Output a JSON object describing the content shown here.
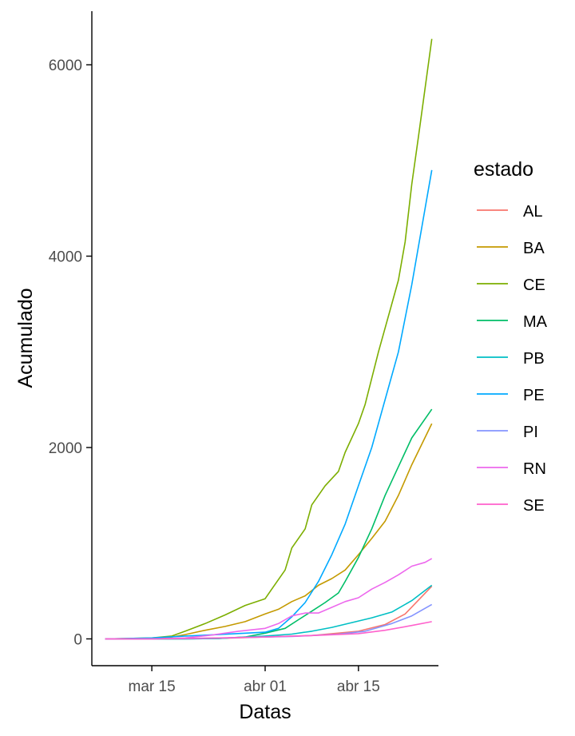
{
  "chart_data": {
    "type": "line",
    "xlabel": "Datas",
    "ylabel": "Acumulado",
    "x_ticks": [
      "mar 15",
      "abr 01",
      "abr 15"
    ],
    "y_ticks": [
      0,
      2000,
      4000,
      6000
    ],
    "xlim": [
      "2020-03-06",
      "2020-04-27"
    ],
    "ylim": [
      -280,
      6560
    ],
    "grid": false,
    "legend": {
      "title": "estado",
      "placement": "right"
    },
    "series": [
      {
        "name": "AL",
        "color": "#F8766D",
        "points": [
          [
            "2020-03-08",
            0
          ],
          [
            "2020-03-15",
            0
          ],
          [
            "2020-03-25",
            5
          ],
          [
            "2020-04-01",
            20
          ],
          [
            "2020-04-08",
            35
          ],
          [
            "2020-04-15",
            80
          ],
          [
            "2020-04-19",
            150
          ],
          [
            "2020-04-22",
            260
          ],
          [
            "2020-04-26",
            550
          ]
        ]
      },
      {
        "name": "BA",
        "color": "#C49A00",
        "points": [
          [
            "2020-03-08",
            0
          ],
          [
            "2020-03-13",
            0
          ],
          [
            "2020-03-15",
            5
          ],
          [
            "2020-03-18",
            20
          ],
          [
            "2020-03-20",
            45
          ],
          [
            "2020-03-23",
            90
          ],
          [
            "2020-03-26",
            130
          ],
          [
            "2020-03-29",
            180
          ],
          [
            "2020-04-01",
            260
          ],
          [
            "2020-04-03",
            310
          ],
          [
            "2020-04-05",
            390
          ],
          [
            "2020-04-07",
            450
          ],
          [
            "2020-04-09",
            560
          ],
          [
            "2020-04-11",
            630
          ],
          [
            "2020-04-13",
            720
          ],
          [
            "2020-04-15",
            880
          ],
          [
            "2020-04-17",
            1050
          ],
          [
            "2020-04-19",
            1230
          ],
          [
            "2020-04-21",
            1500
          ],
          [
            "2020-04-23",
            1820
          ],
          [
            "2020-04-26",
            2250
          ]
        ]
      },
      {
        "name": "CE",
        "color": "#7CAE00",
        "points": [
          [
            "2020-03-08",
            0
          ],
          [
            "2020-03-15",
            10
          ],
          [
            "2020-03-18",
            30
          ],
          [
            "2020-03-20",
            80
          ],
          [
            "2020-03-23",
            160
          ],
          [
            "2020-03-26",
            250
          ],
          [
            "2020-03-29",
            350
          ],
          [
            "2020-04-01",
            420
          ],
          [
            "2020-04-02",
            520
          ],
          [
            "2020-04-04",
            720
          ],
          [
            "2020-04-05",
            950
          ],
          [
            "2020-04-07",
            1150
          ],
          [
            "2020-04-08",
            1400
          ],
          [
            "2020-04-10",
            1600
          ],
          [
            "2020-04-12",
            1750
          ],
          [
            "2020-04-13",
            1950
          ],
          [
            "2020-04-15",
            2250
          ],
          [
            "2020-04-16",
            2450
          ],
          [
            "2020-04-18",
            3000
          ],
          [
            "2020-04-20",
            3500
          ],
          [
            "2020-04-21",
            3750
          ],
          [
            "2020-04-22",
            4150
          ],
          [
            "2020-04-23",
            4750
          ],
          [
            "2020-04-24",
            5250
          ],
          [
            "2020-04-26",
            6270
          ]
        ]
      },
      {
        "name": "MA",
        "color": "#00BE67",
        "points": [
          [
            "2020-03-08",
            0
          ],
          [
            "2020-03-20",
            0
          ],
          [
            "2020-03-25",
            5
          ],
          [
            "2020-03-29",
            20
          ],
          [
            "2020-04-01",
            60
          ],
          [
            "2020-04-04",
            110
          ],
          [
            "2020-04-06",
            200
          ],
          [
            "2020-04-08",
            290
          ],
          [
            "2020-04-10",
            380
          ],
          [
            "2020-04-12",
            480
          ],
          [
            "2020-04-13",
            600
          ],
          [
            "2020-04-15",
            850
          ],
          [
            "2020-04-17",
            1150
          ],
          [
            "2020-04-19",
            1500
          ],
          [
            "2020-04-21",
            1800
          ],
          [
            "2020-04-23",
            2100
          ],
          [
            "2020-04-26",
            2400
          ]
        ]
      },
      {
        "name": "PB",
        "color": "#00BFC4",
        "points": [
          [
            "2020-03-08",
            0
          ],
          [
            "2020-03-20",
            0
          ],
          [
            "2020-03-25",
            5
          ],
          [
            "2020-04-01",
            30
          ],
          [
            "2020-04-05",
            50
          ],
          [
            "2020-04-08",
            80
          ],
          [
            "2020-04-11",
            120
          ],
          [
            "2020-04-14",
            170
          ],
          [
            "2020-04-17",
            220
          ],
          [
            "2020-04-20",
            280
          ],
          [
            "2020-04-23",
            400
          ],
          [
            "2020-04-26",
            560
          ]
        ]
      },
      {
        "name": "PE",
        "color": "#00A9FF",
        "points": [
          [
            "2020-03-08",
            0
          ],
          [
            "2020-03-15",
            10
          ],
          [
            "2020-03-20",
            30
          ],
          [
            "2020-03-25",
            45
          ],
          [
            "2020-04-01",
            70
          ],
          [
            "2020-04-03",
            110
          ],
          [
            "2020-04-05",
            230
          ],
          [
            "2020-04-07",
            380
          ],
          [
            "2020-04-09",
            600
          ],
          [
            "2020-04-11",
            880
          ],
          [
            "2020-04-13",
            1200
          ],
          [
            "2020-04-15",
            1600
          ],
          [
            "2020-04-17",
            2000
          ],
          [
            "2020-04-19",
            2500
          ],
          [
            "2020-04-21",
            3000
          ],
          [
            "2020-04-23",
            3700
          ],
          [
            "2020-04-25",
            4500
          ],
          [
            "2020-04-26",
            4900
          ]
        ]
      },
      {
        "name": "PI",
        "color": "#8494FF",
        "points": [
          [
            "2020-03-08",
            0
          ],
          [
            "2020-03-15",
            0
          ],
          [
            "2020-03-22",
            5
          ],
          [
            "2020-03-29",
            15
          ],
          [
            "2020-04-05",
            25
          ],
          [
            "2020-04-12",
            50
          ],
          [
            "2020-04-16",
            80
          ],
          [
            "2020-04-20",
            160
          ],
          [
            "2020-04-23",
            240
          ],
          [
            "2020-04-26",
            360
          ]
        ]
      },
      {
        "name": "RN",
        "color": "#ED68ED",
        "points": [
          [
            "2020-03-08",
            0
          ],
          [
            "2020-03-15",
            0
          ],
          [
            "2020-03-20",
            10
          ],
          [
            "2020-03-24",
            40
          ],
          [
            "2020-03-28",
            80
          ],
          [
            "2020-04-01",
            110
          ],
          [
            "2020-04-03",
            160
          ],
          [
            "2020-04-05",
            240
          ],
          [
            "2020-04-07",
            270
          ],
          [
            "2020-04-09",
            270
          ],
          [
            "2020-04-11",
            330
          ],
          [
            "2020-04-13",
            390
          ],
          [
            "2020-04-15",
            430
          ],
          [
            "2020-04-17",
            520
          ],
          [
            "2020-04-19",
            590
          ],
          [
            "2020-04-21",
            670
          ],
          [
            "2020-04-23",
            760
          ],
          [
            "2020-04-25",
            800
          ],
          [
            "2020-04-26",
            840
          ]
        ]
      },
      {
        "name": "SE",
        "color": "#FF61CC",
        "points": [
          [
            "2020-03-08",
            0
          ],
          [
            "2020-03-15",
            0
          ],
          [
            "2020-03-25",
            10
          ],
          [
            "2020-04-01",
            20
          ],
          [
            "2020-04-08",
            35
          ],
          [
            "2020-04-15",
            55
          ],
          [
            "2020-04-19",
            90
          ],
          [
            "2020-04-23",
            140
          ],
          [
            "2020-04-26",
            180
          ]
        ]
      }
    ]
  }
}
